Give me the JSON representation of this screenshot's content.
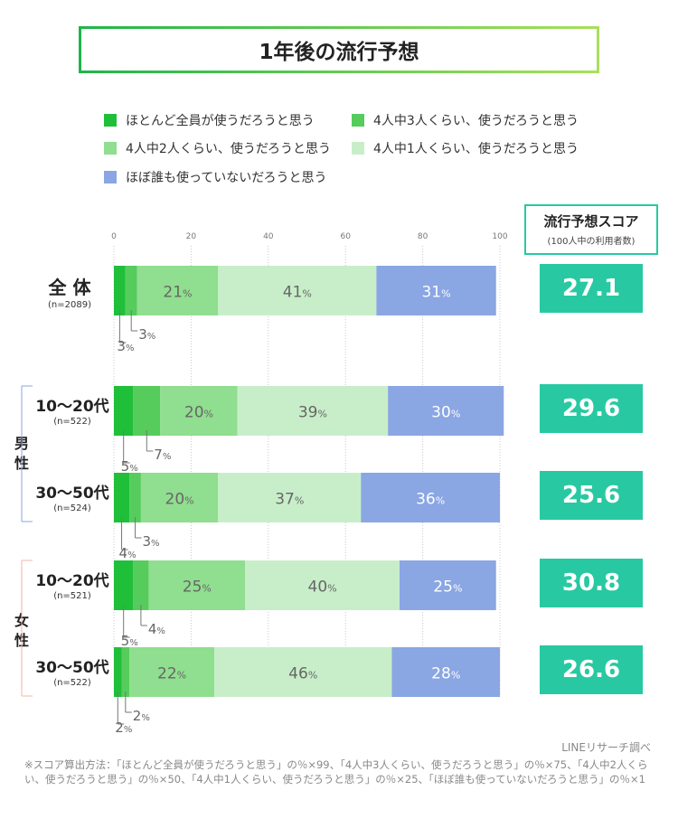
{
  "title": "1年後の流行予想",
  "legend": [
    {
      "label": "ほとんど全員が使うだろうと思う",
      "color": "#1fbf3a"
    },
    {
      "label": "4人中3人くらい、使うだろうと思う",
      "color": "#55cc5c"
    },
    {
      "label": "4人中2人くらい、使うだろうと思う",
      "color": "#90de8f"
    },
    {
      "label": "4人中1人くらい、使うだろうと思う",
      "color": "#c8eec9"
    },
    {
      "label": "ほぼ誰も使っていないだろうと思う",
      "color": "#8aa6e3"
    }
  ],
  "score_header": {
    "title": "流行予想スコア",
    "subtitle": "(100人中の利用者数)"
  },
  "groups": {
    "male": "男性",
    "female": "女性"
  },
  "chart_data": {
    "type": "bar",
    "orientation": "horizontal",
    "stacked": true,
    "xlim": [
      0,
      100
    ],
    "xticks": [
      "0",
      "20",
      "40",
      "60",
      "80",
      "100"
    ],
    "value_suffix": "%",
    "grid": true,
    "categories": [
      {
        "label": "全 体",
        "n": "(n=2089)",
        "score": "27.1"
      },
      {
        "label": "10〜20代",
        "n": "(n=522)",
        "score": "29.6",
        "group": "男性"
      },
      {
        "label": "30〜50代",
        "n": "(n=524)",
        "score": "25.6",
        "group": "男性"
      },
      {
        "label": "10〜20代",
        "n": "(n=521)",
        "score": "30.8",
        "group": "女性"
      },
      {
        "label": "30〜50代",
        "n": "(n=522)",
        "score": "26.6",
        "group": "女性"
      }
    ],
    "series": [
      {
        "name": "ほとんど全員が使うだろうと思う",
        "values": [
          3,
          5,
          4,
          5,
          2
        ]
      },
      {
        "name": "4人中3人くらい、使うだろうと思う",
        "values": [
          3,
          7,
          3,
          4,
          2
        ]
      },
      {
        "name": "4人中2人くらい、使うだろうと思う",
        "values": [
          21,
          20,
          20,
          25,
          22
        ]
      },
      {
        "name": "4人中1人くらい、使うだろうと思う",
        "values": [
          41,
          39,
          37,
          40,
          46
        ]
      },
      {
        "name": "ほぼ誰も使っていないだろうと思う",
        "values": [
          31,
          30,
          36,
          25,
          28
        ]
      }
    ]
  },
  "source": "LINEリサーチ調べ",
  "note": "※スコア算出方法：「ほとんど全員が使うだろうと思う」の％×99、「4人中3人くらい、使うだろうと思う」の％×75、「4人中2人くらい、使うだろうと思う」の％×50、「4人中1人くらい、使うだろうと思う」の％×25、「ほぼ誰も使っていないだろうと思う」の％×1"
}
